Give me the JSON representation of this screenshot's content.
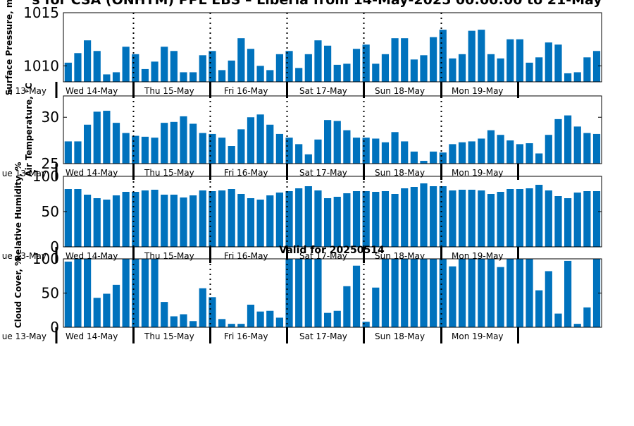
{
  "title": "s for CSA (ONHTM) PPL EBS – Liberia from 14-May-2025 00:00:00 to 21-May",
  "valid_label": "Valid for 20250514",
  "day_labels": [
    "Wed 14-May",
    "Thu 15-May",
    "Fri 16-May",
    "Sat 17-May",
    "Sun 18-May",
    "Mon 19-May"
  ],
  "bar_color": "#0072bd",
  "chart_data": [
    {
      "type": "bar",
      "ylabel": "Surface Pressure, m",
      "left_edge_label": "e 13-May",
      "ylim": [
        1008.5,
        1015
      ],
      "yticks": [
        1010,
        1015
      ],
      "values": [
        1010.3,
        1011.2,
        1012.4,
        1011.4,
        1009.2,
        1009.4,
        1011.8,
        1011.1,
        1009.7,
        1010.4,
        1011.8,
        1011.4,
        1009.4,
        1009.4,
        1011.0,
        1011.4,
        1009.6,
        1010.5,
        1012.6,
        1011.6,
        1010.0,
        1009.6,
        1011.1,
        1011.4,
        1009.8,
        1011.1,
        1012.4,
        1011.9,
        1010.1,
        1010.2,
        1011.6,
        1012.0,
        1010.2,
        1011.1,
        1012.6,
        1012.6,
        1010.6,
        1011.0,
        1012.7,
        1013.4,
        1010.7,
        1011.1,
        1013.3,
        1013.4,
        1011.1,
        1010.7,
        1012.5,
        1012.5,
        1010.3,
        1010.8,
        1012.2,
        1012.0,
        1009.3,
        1009.4,
        1010.8,
        1011.4
      ]
    },
    {
      "type": "bar",
      "ylabel": "Air Temperature, °C",
      "left_edge_label": "ue 13-May",
      "ylim": [
        25,
        32.3
      ],
      "yticks": [
        25,
        30
      ],
      "values": [
        27.4,
        27.4,
        29.2,
        30.6,
        30.7,
        29.4,
        28.3,
        28.0,
        27.9,
        27.8,
        29.4,
        29.5,
        30.1,
        29.3,
        28.3,
        28.2,
        27.8,
        26.9,
        28.7,
        30.0,
        30.3,
        29.2,
        28.2,
        27.8,
        27.1,
        26.0,
        27.6,
        29.7,
        29.6,
        28.6,
        27.8,
        27.8,
        27.7,
        27.3,
        28.4,
        27.4,
        26.3,
        25.3,
        26.3,
        26.2,
        27.1,
        27.3,
        27.4,
        27.7,
        28.6,
        28.1,
        27.5,
        27.1,
        27.2,
        26.1,
        28.1,
        29.8,
        30.2,
        29.0,
        28.3,
        28.2
      ]
    },
    {
      "type": "bar",
      "ylabel": "Relative Humidity, %",
      "left_edge_label": "ue 13-May",
      "ylim": [
        0,
        100
      ],
      "yticks": [
        0,
        50,
        100
      ],
      "values": [
        82,
        82,
        74,
        69,
        67,
        73,
        78,
        78,
        80,
        81,
        74,
        74,
        70,
        73,
        80,
        79,
        80,
        82,
        75,
        69,
        67,
        73,
        77,
        79,
        83,
        86,
        80,
        69,
        71,
        76,
        79,
        79,
        78,
        79,
        75,
        83,
        85,
        90,
        86,
        86,
        80,
        81,
        81,
        80,
        75,
        78,
        82,
        82,
        83,
        88,
        80,
        72,
        69,
        77,
        79,
        79
      ]
    },
    {
      "type": "bar",
      "ylabel": "Cloud Cover, %",
      "left_edge_label": "ue 13-May",
      "ylim": [
        0,
        100
      ],
      "yticks": [
        0,
        50,
        100
      ],
      "values": [
        96,
        100,
        100,
        43,
        49,
        62,
        100,
        100,
        100,
        100,
        37,
        16,
        19,
        9,
        57,
        44,
        12,
        5,
        5,
        33,
        23,
        24,
        14,
        100,
        100,
        100,
        100,
        21,
        24,
        60,
        90,
        8,
        58,
        100,
        100,
        100,
        100,
        100,
        100,
        100,
        89,
        100,
        100,
        100,
        100,
        88,
        100,
        100,
        100,
        54,
        82,
        20,
        97,
        5,
        29,
        100
      ]
    }
  ]
}
